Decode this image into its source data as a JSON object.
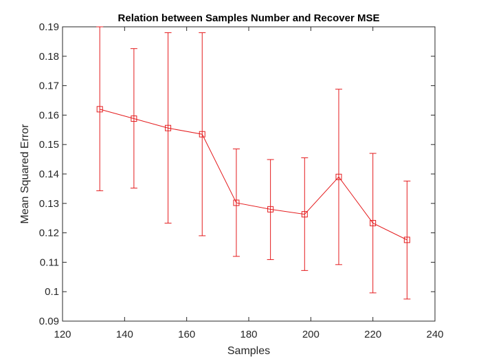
{
  "chart_data": {
    "type": "line",
    "title": "Relation between Samples Number and Recover MSE",
    "xlabel": "Samples",
    "ylabel": "Mean Squared Error",
    "xlim": [
      120,
      240
    ],
    "ylim": [
      0.09,
      0.19
    ],
    "xticks": [
      120,
      140,
      160,
      180,
      200,
      220,
      240
    ],
    "yticks": [
      0.09,
      0.1,
      0.11,
      0.12,
      0.13,
      0.14,
      0.15,
      0.16,
      0.17,
      0.18,
      0.19
    ],
    "xtick_labels": [
      "120",
      "140",
      "160",
      "180",
      "200",
      "220",
      "240"
    ],
    "ytick_labels": [
      "0.09",
      "0.1",
      "0.11",
      "0.12",
      "0.13",
      "0.14",
      "0.15",
      "0.16",
      "0.17",
      "0.18",
      "0.19"
    ],
    "grid": false,
    "marker": "square",
    "color": "#e41a1c",
    "series": [
      {
        "x": [
          132,
          143,
          154,
          165,
          176,
          187,
          198,
          209,
          220,
          231
        ],
        "y": [
          0.162,
          0.1588,
          0.1556,
          0.1535,
          0.1302,
          0.128,
          0.1263,
          0.139,
          0.1233,
          0.1176
        ],
        "err_low": [
          0.1343,
          0.1352,
          0.1233,
          0.119,
          0.112,
          0.1109,
          0.1072,
          0.1092,
          0.0996,
          0.0975
        ],
        "err_high": [
          0.19,
          0.1826,
          0.188,
          0.188,
          0.1485,
          0.1449,
          0.1455,
          0.1688,
          0.147,
          0.1376
        ]
      }
    ]
  }
}
